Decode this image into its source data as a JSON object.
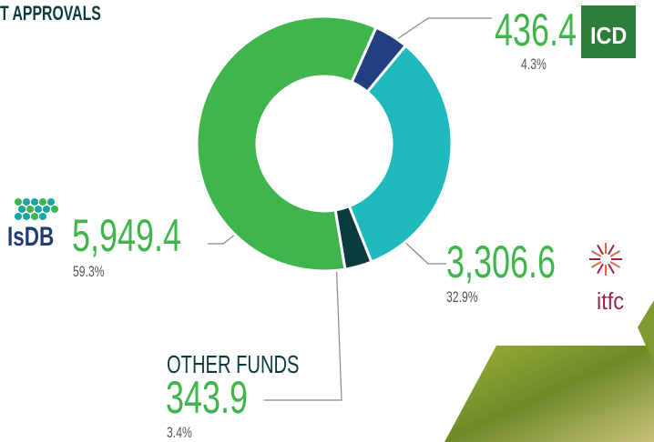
{
  "chart_data": {
    "type": "pie",
    "donut": true,
    "title": "T APPROVALS",
    "categories": [
      "ICD",
      "itfc",
      "OTHER FUNDS",
      "IsDB"
    ],
    "values": [
      436.4,
      3306.6,
      343.9,
      5949.4
    ],
    "value_labels": [
      "436.4",
      "3,306.6",
      "343.9",
      "5,949.4"
    ],
    "shares": [
      4.3,
      32.9,
      3.4,
      59.3
    ],
    "share_labels": [
      "4.3%",
      "32.9%",
      "3.4%",
      "59.3%"
    ],
    "colors": [
      "#233f80",
      "#20b9bc",
      "#0b3b3d",
      "#3fb54b"
    ]
  }
}
